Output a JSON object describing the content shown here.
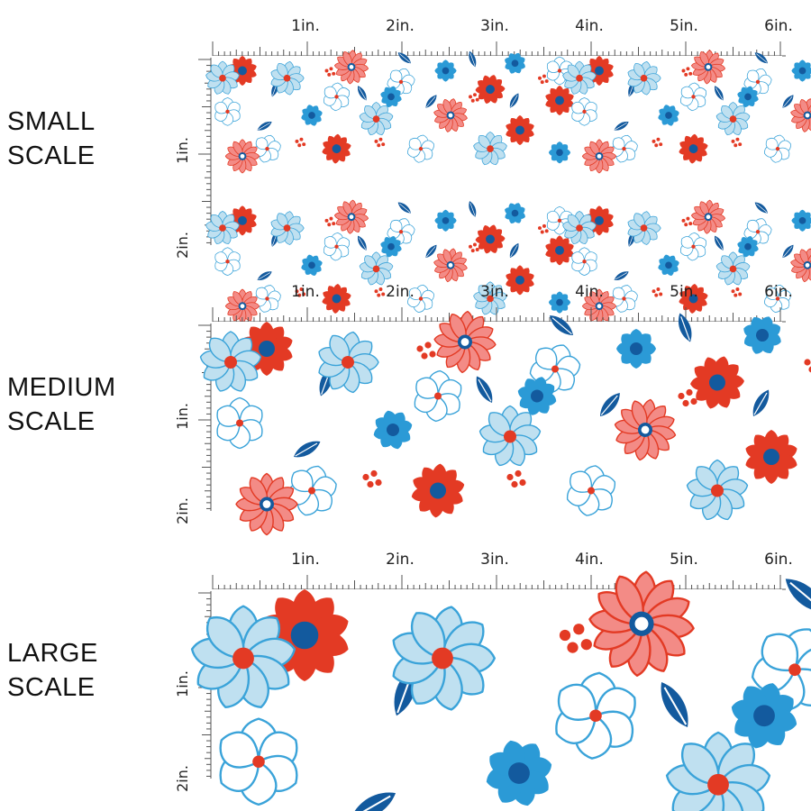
{
  "sections": [
    {
      "id": "small",
      "label": "SMALL\nSCALE",
      "flower_scale": 0.55
    },
    {
      "id": "medium",
      "label": "MEDIUM\nSCALE",
      "flower_scale": 1.0
    },
    {
      "id": "large",
      "label": "LARGE\nSCALE",
      "flower_scale": 1.7
    }
  ],
  "ruler": {
    "top_labels": [
      "1in.",
      "2in.",
      "3in.",
      "4in.",
      "5in.",
      "6in."
    ],
    "side_labels": [
      "1in.",
      "2in."
    ]
  },
  "colors": {
    "red": "#e33a24",
    "pink": "#f38b86",
    "royal_blue": "#135a9e",
    "sky_blue": "#2b9ad6",
    "pale_blue": "#bfe0f0",
    "outline_blue": "#3aa3d9",
    "tick": "#555555"
  }
}
